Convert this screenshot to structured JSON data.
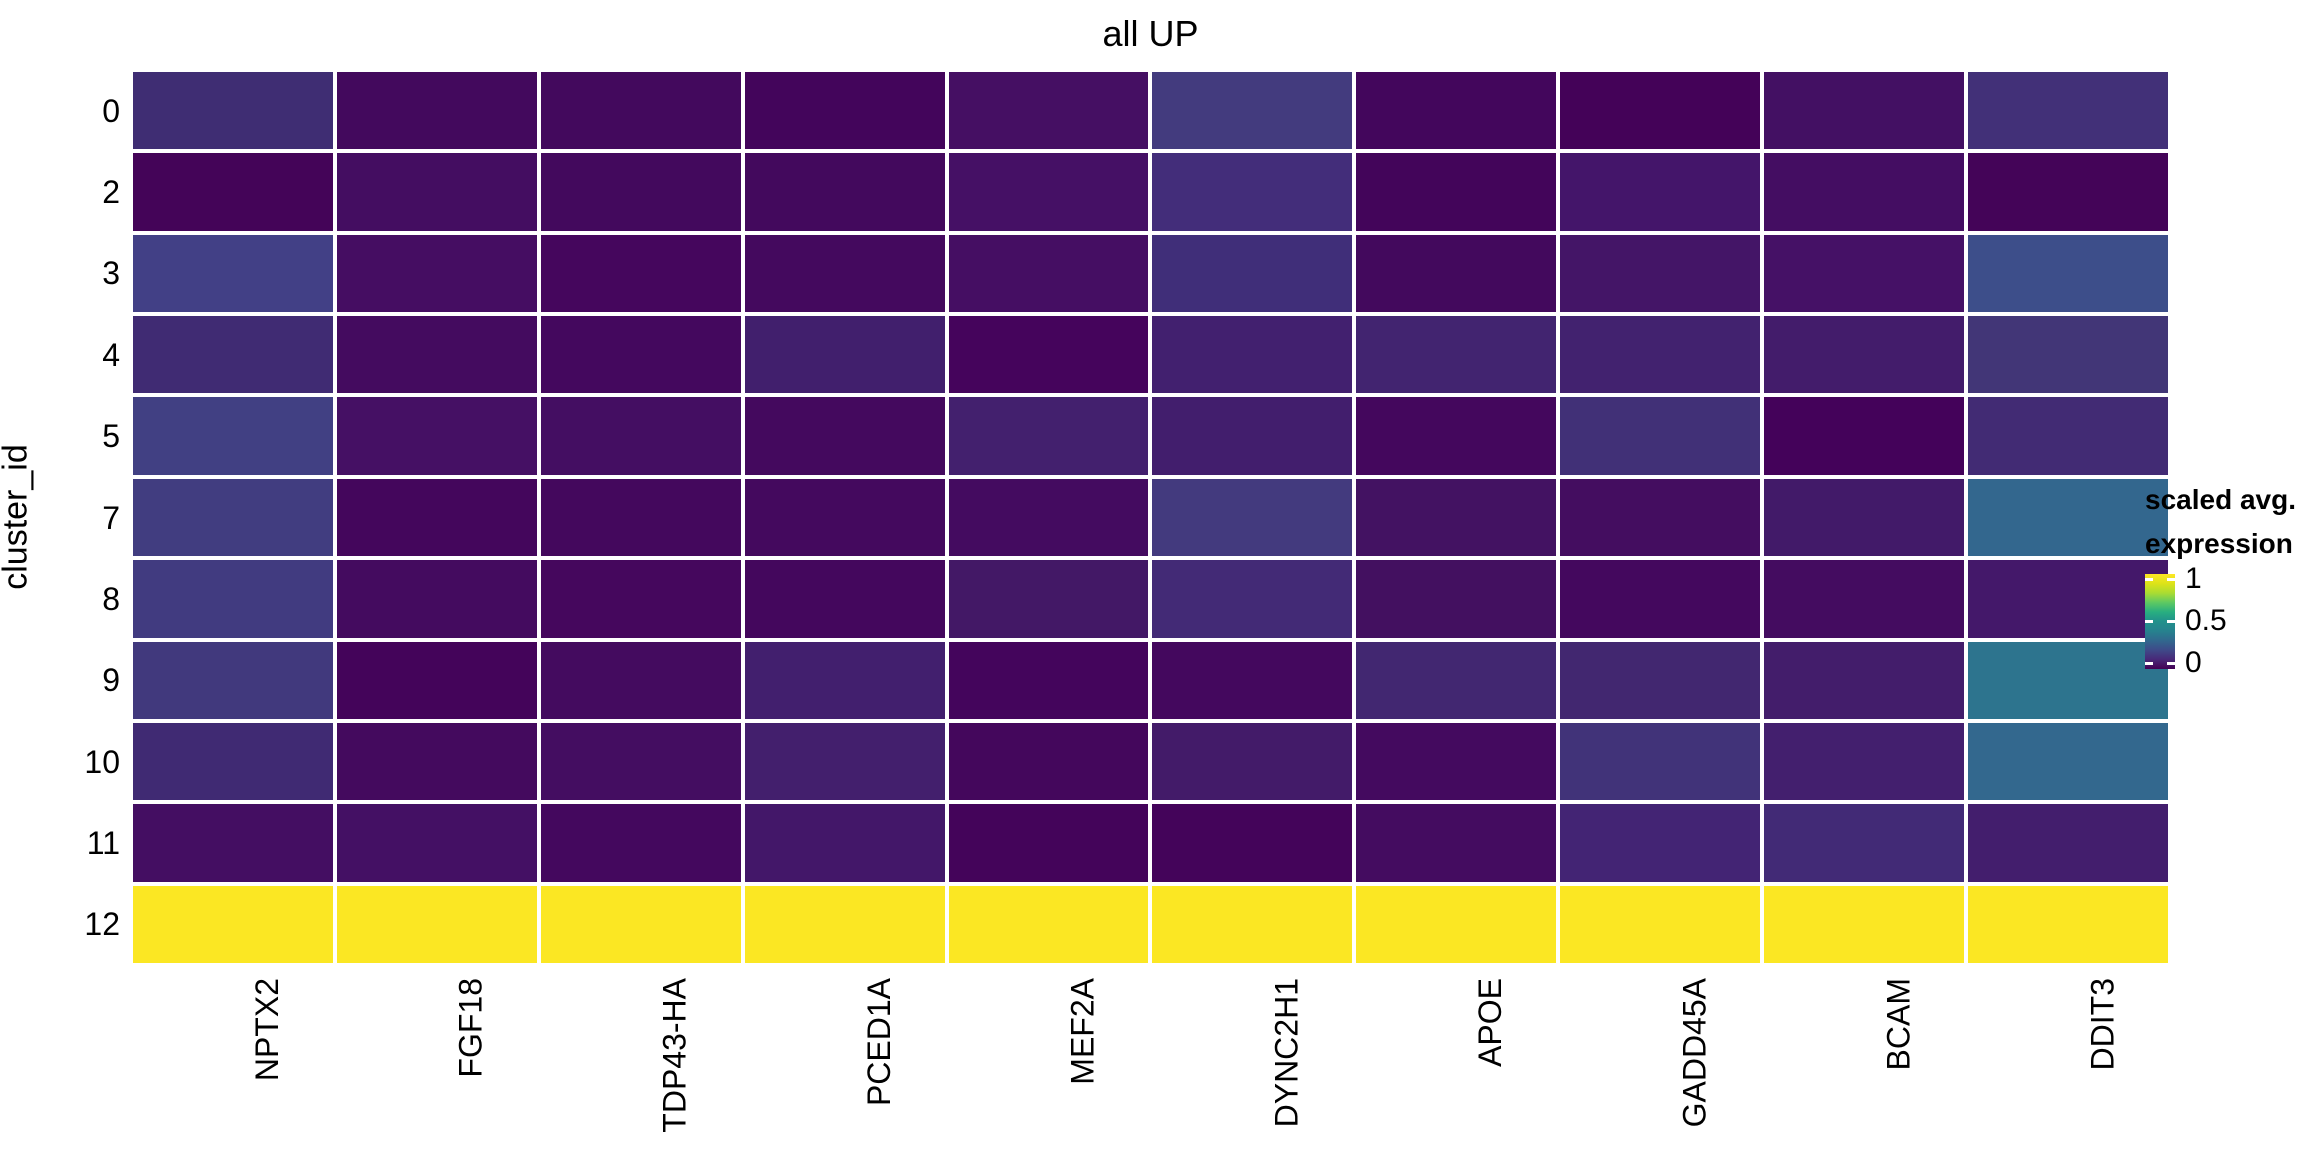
{
  "title": "all UP",
  "y_axis_title": "cluster_id",
  "colors": {
    "background": "#ffffff",
    "text": "#000000",
    "cell_gap": "#ffffff"
  },
  "legend": {
    "title_lines": [
      "scaled avg.",
      "expression"
    ],
    "tick_labels": [
      "1",
      "0.5",
      "0"
    ],
    "tick_positions_pct": [
      5.3,
      49.6,
      93.8
    ]
  },
  "chart_data": {
    "type": "heatmap",
    "title": "all UP",
    "xlabel": "",
    "ylabel": "cluster_id",
    "legend_title": "scaled avg. expression",
    "colorscale": {
      "name": "viridis",
      "min_color": "#440154",
      "mid_color": "#21918c",
      "max_color": "#fde725",
      "legend_ticks": [
        0,
        0.5,
        1
      ]
    },
    "rows": [
      "0",
      "2",
      "3",
      "4",
      "5",
      "7",
      "8",
      "9",
      "10",
      "11",
      "12"
    ],
    "columns": [
      "NPTX2",
      "FGF18",
      "TDP43-HA",
      "PCED1A",
      "MEF2A",
      "DYNC2H1",
      "APOE",
      "GADD45A",
      "BCAM",
      "DDIT3"
    ],
    "values": [
      [
        0.14,
        0.04,
        0.04,
        0.02,
        0.06,
        0.19,
        0.03,
        0.01,
        0.06,
        0.15
      ],
      [
        0.01,
        0.05,
        0.04,
        0.04,
        0.07,
        0.14,
        0.02,
        0.08,
        0.05,
        0.01
      ],
      [
        0.21,
        0.05,
        0.03,
        0.04,
        0.06,
        0.15,
        0.04,
        0.08,
        0.07,
        0.26
      ],
      [
        0.13,
        0.05,
        0.04,
        0.1,
        0.02,
        0.11,
        0.12,
        0.11,
        0.09,
        0.17
      ],
      [
        0.21,
        0.06,
        0.06,
        0.04,
        0.11,
        0.1,
        0.03,
        0.15,
        0.01,
        0.13
      ],
      [
        0.19,
        0.03,
        0.04,
        0.04,
        0.05,
        0.18,
        0.07,
        0.05,
        0.09,
        0.33
      ],
      [
        0.19,
        0.05,
        0.03,
        0.03,
        0.08,
        0.13,
        0.06,
        0.04,
        0.05,
        0.09
      ],
      [
        0.18,
        0.02,
        0.05,
        0.1,
        0.02,
        0.04,
        0.13,
        0.13,
        0.1,
        0.38
      ],
      [
        0.13,
        0.04,
        0.05,
        0.1,
        0.03,
        0.09,
        0.04,
        0.16,
        0.1,
        0.34
      ],
      [
        0.06,
        0.06,
        0.04,
        0.08,
        0.02,
        0.02,
        0.05,
        0.12,
        0.13,
        0.1
      ],
      [
        1,
        1,
        1,
        1,
        1,
        1,
        1,
        1,
        1,
        1
      ]
    ],
    "cell_colors": [
      [
        "#3f2d73",
        "#43095d",
        "#43095d",
        "#43055b",
        "#450f63",
        "#433b7e",
        "#43065c",
        "#440258",
        "#431063",
        "#423078"
      ],
      [
        "#440458",
        "#440d61",
        "#43095d",
        "#43095d",
        "#451065",
        "#432d7a",
        "#43055a",
        "#44156a",
        "#440d62",
        "#440458"
      ],
      [
        "#424086",
        "#450d62",
        "#45065d",
        "#44095e",
        "#450e63",
        "#402e79",
        "#43095d",
        "#441567",
        "#451166",
        "#3d4e8a"
      ],
      [
        "#402b73",
        "#440b5f",
        "#44085e",
        "#411f6d",
        "#45045c",
        "#42206f",
        "#422470",
        "#42226f",
        "#431c6b",
        "#423677"
      ],
      [
        "#414083",
        "#451064",
        "#440e62",
        "#44095e",
        "#43206e",
        "#421e6d",
        "#44075d",
        "#413077",
        "#44025a",
        "#422b74"
      ],
      [
        "#413d80",
        "#44065c",
        "#44085d",
        "#44095e",
        "#440b60",
        "#433a7e",
        "#431262",
        "#440d60",
        "#421a69",
        "#33678e"
      ],
      [
        "#413b80",
        "#440b5f",
        "#45075d",
        "#44075d",
        "#431866",
        "#432a76",
        "#431060",
        "#44085e",
        "#440c60",
        "#44186a"
      ],
      [
        "#41397d",
        "#44045a",
        "#440b5f",
        "#421f6e",
        "#44055c",
        "#44085e",
        "#422771",
        "#422770",
        "#431d6b",
        "#2d748e"
      ],
      [
        "#402a73",
        "#440a5e",
        "#440d61",
        "#431f6d",
        "#44075c",
        "#431b69",
        "#440a5f",
        "#413379",
        "#431f6e",
        "#33688e"
      ],
      [
        "#440e62",
        "#441064",
        "#44085e",
        "#431769",
        "#44045a",
        "#44045a",
        "#440c60",
        "#432474",
        "#422a76",
        "#431e6d"
      ],
      [
        "#fbe723",
        "#fbe723",
        "#fbe723",
        "#fbe723",
        "#fbe723",
        "#fbe723",
        "#fbe723",
        "#fbe723",
        "#fbe723",
        "#fbe723"
      ]
    ]
  }
}
